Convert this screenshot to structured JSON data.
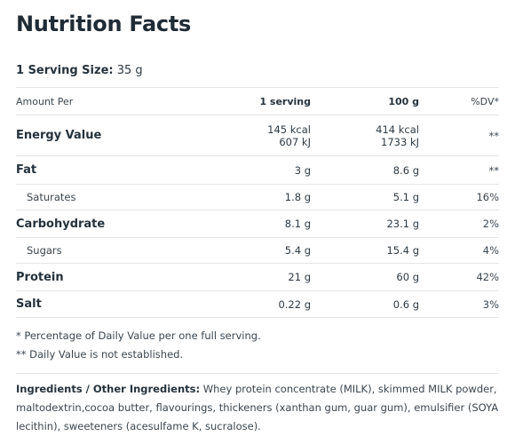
{
  "title": "Nutrition Facts",
  "serving": {
    "label": "1 Serving Size:",
    "value": "35 g"
  },
  "columns": {
    "amount_per": "Amount Per",
    "per_serving": "1 serving",
    "per_100g": "100 g",
    "dv": "%DV*"
  },
  "rows": [
    {
      "name": "Energy Value",
      "serving": "145 kcal",
      "serving2": "607 kJ",
      "per100": "414 kcal",
      "per100_2": "1733 kJ",
      "dv": "**"
    },
    {
      "name": "Fat",
      "serving": "3 g",
      "per100": "8.6 g",
      "dv": "**"
    },
    {
      "name": "Saturates",
      "serving": "1.8 g",
      "per100": "5.1 g",
      "dv": "16%"
    },
    {
      "name": "Carbohydrate",
      "serving": "8.1 g",
      "per100": "23.1 g",
      "dv": "2%"
    },
    {
      "name": "Sugars",
      "serving": "5.4 g",
      "per100": "15.4 g",
      "dv": "4%"
    },
    {
      "name": "Protein",
      "serving": "21 g",
      "per100": "60 g",
      "dv": "42%"
    },
    {
      "name": "Salt",
      "serving": "0.22 g",
      "per100": "0.6 g",
      "dv": "3%"
    }
  ],
  "notes": {
    "dv_note": "* Percentage of Daily Value per one full serving.",
    "na_note": "** Daily Value is not established."
  },
  "ingredients": {
    "label": "Ingredients / Other Ingredients:",
    "text": "Whey protein concentrate (MILK), skimmed MILK powder, maltodextrin,cocoa butter, flavourings, thickeners  (xanthan gum, guar gum), emulsifier (SOYA lecithin), sweeteners  (acesulfame K, sucralose)."
  }
}
